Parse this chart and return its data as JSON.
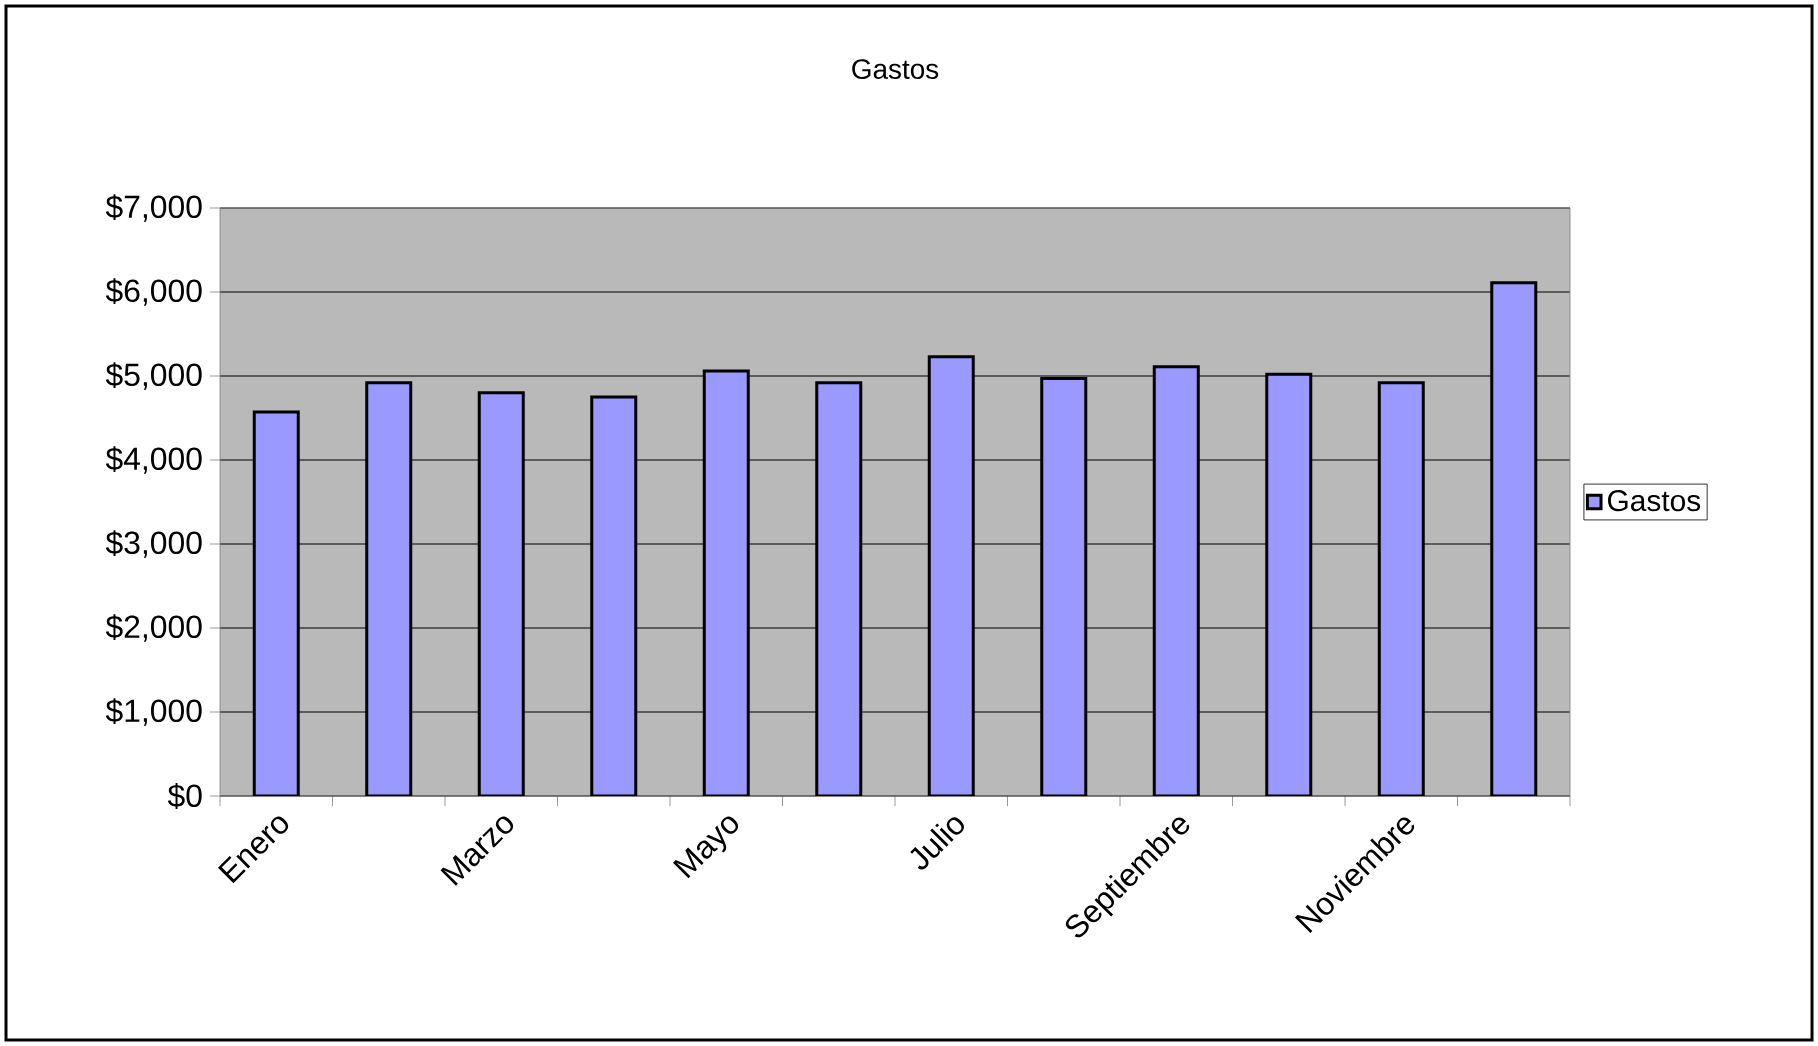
{
  "chart_data": {
    "type": "bar",
    "title": "Gastos",
    "categories": [
      "Enero",
      null,
      "Marzo",
      null,
      "Mayo",
      null,
      "Julio",
      null,
      "Septiembre",
      null,
      "Noviembre",
      null
    ],
    "series": [
      {
        "name": "Gastos",
        "color": "#9999ff",
        "values": [
          4570,
          4920,
          4800,
          4750,
          5060,
          4920,
          5230,
          4970,
          5110,
          5020,
          4920,
          6110
        ]
      }
    ],
    "ylim": [
      0,
      7000
    ],
    "yticks": [
      {
        "value": 0,
        "label": "$0"
      },
      {
        "value": 1000,
        "label": "$1,000"
      },
      {
        "value": 2000,
        "label": "$2,000"
      },
      {
        "value": 3000,
        "label": "$3,000"
      },
      {
        "value": 4000,
        "label": "$4,000"
      },
      {
        "value": 5000,
        "label": "$5,000"
      },
      {
        "value": 6000,
        "label": "$6,000"
      },
      {
        "value": 7000,
        "label": "$7,000"
      }
    ],
    "grid": "y",
    "legend": "right"
  }
}
